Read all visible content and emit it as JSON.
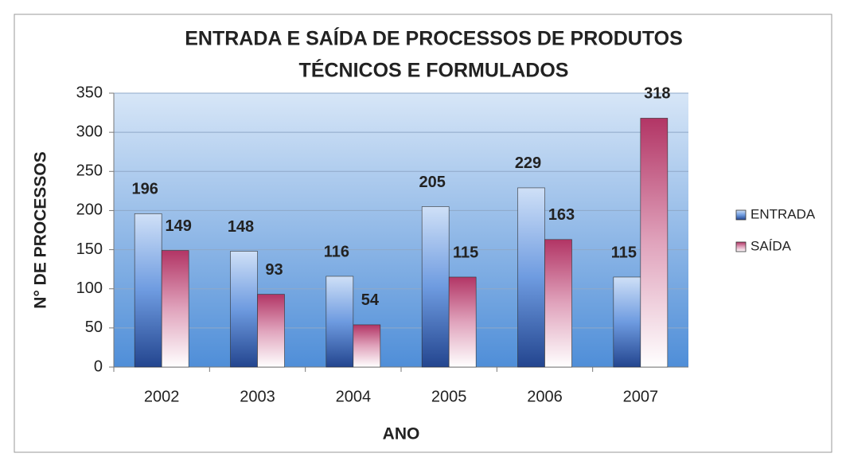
{
  "chart_data": {
    "type": "bar",
    "title": [
      "ENTRADA E SAÍDA DE PROCESSOS DE PRODUTOS",
      "TÉCNICOS E FORMULADOS"
    ],
    "x_label": "ANO",
    "y_label": "N° DE PROCESSOS",
    "categories": [
      "2002",
      "2003",
      "2004",
      "2005",
      "2006",
      "2007"
    ],
    "series": [
      {
        "name": "ENTRADA",
        "color": "#3a6fc4",
        "values": [
          196,
          148,
          116,
          205,
          229,
          115
        ]
      },
      {
        "name": "SAÍDA",
        "color": "#c0406e",
        "values": [
          149,
          93,
          54,
          115,
          163,
          318
        ]
      }
    ],
    "ylim": [
      0,
      350
    ],
    "yticks": [
      0,
      50,
      100,
      150,
      200,
      250,
      300,
      350
    ],
    "grid": true,
    "legend": "right"
  }
}
